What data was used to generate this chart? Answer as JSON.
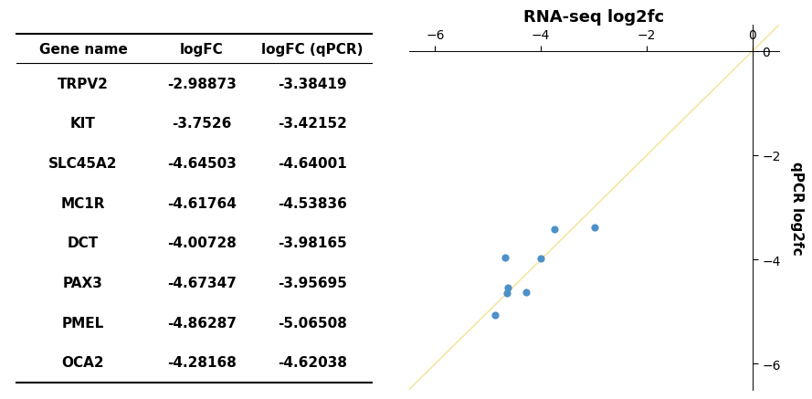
{
  "genes": [
    "TRPV2",
    "KIT",
    "SLC45A2",
    "MC1R",
    "DCT",
    "PAX3",
    "PMEL",
    "OCA2"
  ],
  "logFC": [
    -2.98873,
    -3.7526,
    -4.64503,
    -4.61764,
    -4.00728,
    -4.67347,
    -4.86287,
    -4.28168
  ],
  "logFC_qPCR": [
    -3.38419,
    -3.42152,
    -4.64001,
    -4.53836,
    -3.98165,
    -3.95695,
    -5.06508,
    -4.62038
  ],
  "table_header": [
    "Gene name",
    "logFC",
    "logFC (qPCR)"
  ],
  "scatter_xlabel": "RNA-seq log2fc",
  "scatter_ylabel": "qPCR log2fc",
  "xlim": [
    -6.5,
    0.5
  ],
  "ylim": [
    -6.5,
    0.5
  ],
  "xticks": [
    -6,
    -4,
    -2,
    0
  ],
  "yticks": [
    0,
    -2,
    -4,
    -6
  ],
  "dot_color": "#4e91c8",
  "line_color": "#f5e6a3",
  "background_color": "#ffffff",
  "title_fontsize": 13,
  "label_fontsize": 11,
  "tick_fontsize": 10,
  "table_fontsize": 11
}
